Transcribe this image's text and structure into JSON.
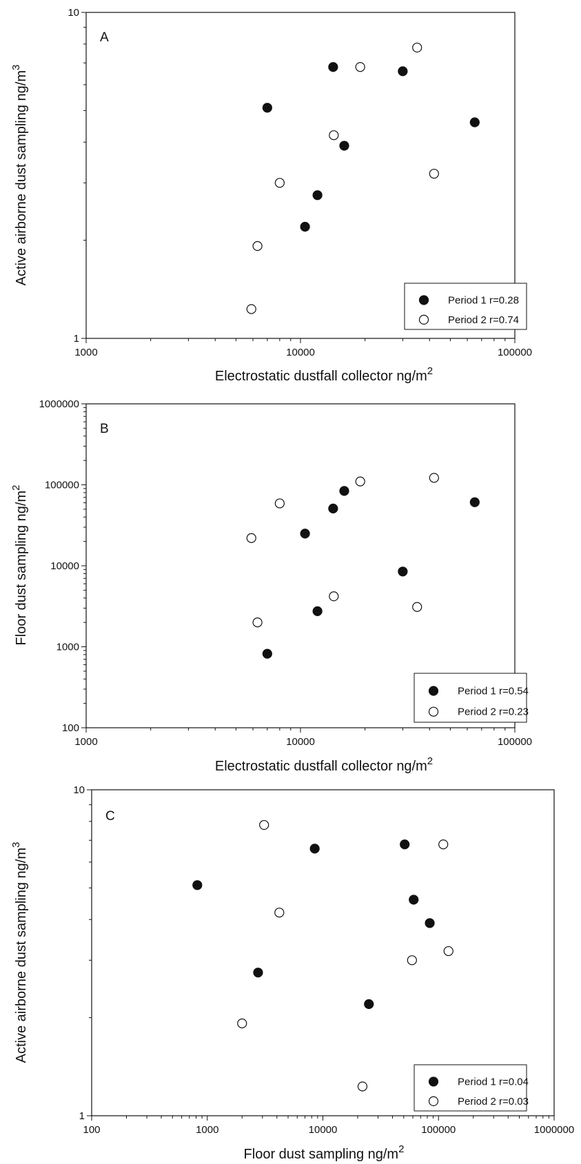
{
  "chart_data": [
    {
      "type": "scatter",
      "panel_label": "A",
      "xscale": "log",
      "yscale": "log",
      "xlim": [
        1000,
        100000
      ],
      "ylim": [
        1,
        10
      ],
      "xticks": [
        "1000",
        "10000",
        "100000"
      ],
      "yticks": [
        "1",
        "10"
      ],
      "xlabel": "Electrostatic dustfall collector ng/m",
      "xlabel_sup": "2",
      "ylabel": "Active airborne dust sampling ng/m",
      "ylabel_sup": "3",
      "legend_position": "bottom-right",
      "series": [
        {
          "name": "Period 1 r=0.28",
          "marker": "filled",
          "x": [
            7000,
            10500,
            12000,
            14200,
            16000,
            30000,
            65000
          ],
          "y": [
            5.1,
            2.2,
            2.75,
            6.8,
            3.9,
            6.6,
            4.6
          ]
        },
        {
          "name": "Period 2 r=0.74",
          "marker": "open",
          "x": [
            5900,
            6300,
            8000,
            14300,
            19000,
            35000,
            42000
          ],
          "y": [
            1.23,
            1.92,
            3.0,
            4.2,
            6.8,
            7.8,
            3.2
          ]
        }
      ]
    },
    {
      "type": "scatter",
      "panel_label": "B",
      "xscale": "log",
      "yscale": "log",
      "xlim": [
        1000,
        100000
      ],
      "ylim": [
        100,
        1000000
      ],
      "xticks": [
        "1000",
        "10000",
        "100000"
      ],
      "yticks": [
        "100",
        "1000",
        "10000",
        "100000",
        "1000000"
      ],
      "xlabel": "Electrostatic dustfall collector ng/m",
      "xlabel_sup": "2",
      "ylabel": "Floor dust sampling ng/m",
      "ylabel_sup": "2",
      "legend_position": "bottom-right",
      "series": [
        {
          "name": "Period 1 r=0.54",
          "marker": "filled",
          "x": [
            7000,
            10500,
            12000,
            14200,
            16000,
            30000,
            65000
          ],
          "y": [
            820,
            25000,
            2750,
            51000,
            84000,
            8500,
            61000
          ]
        },
        {
          "name": "Period 2 r=0.23",
          "marker": "open",
          "x": [
            5900,
            6300,
            8000,
            14300,
            19000,
            35000,
            42000
          ],
          "y": [
            22000,
            2000,
            59000,
            4200,
            110000,
            3100,
            122000
          ]
        }
      ]
    },
    {
      "type": "scatter",
      "panel_label": "C",
      "xscale": "log",
      "yscale": "log",
      "xlim": [
        100,
        1000000
      ],
      "ylim": [
        1,
        10
      ],
      "xticks": [
        "100",
        "1000",
        "10000",
        "100000",
        "1000000"
      ],
      "yticks": [
        "1",
        "10"
      ],
      "xlabel": "Floor dust sampling ng/m",
      "xlabel_sup": "2",
      "ylabel": "Active airborne dust sampling ng/m",
      "ylabel_sup": "3",
      "legend_position": "bottom-right",
      "series": [
        {
          "name": "Period 1 r=0.04",
          "marker": "filled",
          "x": [
            820,
            2750,
            8500,
            25000,
            51000,
            61000,
            84000
          ],
          "y": [
            5.1,
            2.75,
            6.6,
            2.2,
            6.8,
            4.6,
            3.9
          ]
        },
        {
          "name": "Period 2 r=0.03",
          "marker": "open",
          "x": [
            2000,
            3100,
            4200,
            22000,
            59000,
            110000,
            122000
          ],
          "y": [
            1.92,
            7.8,
            4.2,
            1.23,
            3.0,
            6.8,
            3.2
          ]
        }
      ]
    }
  ]
}
